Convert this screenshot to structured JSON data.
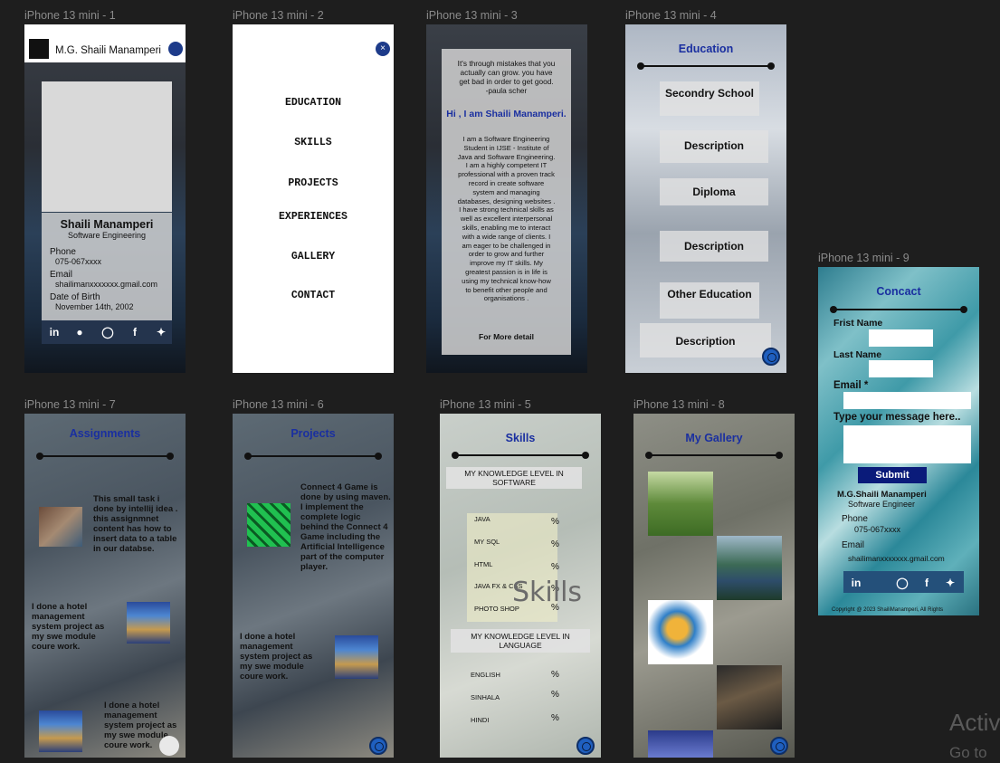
{
  "frames": [
    "iPhone 13 mini - 1",
    "iPhone 13 mini - 2",
    "iPhone 13 mini - 3",
    "iPhone 13 mini - 4",
    "iPhone 13 mini - 9",
    "iPhone 13 mini - 7",
    "iPhone 13 mini - 6",
    "iPhone 13 mini - 5",
    "iPhone 13 mini - 8"
  ],
  "home": {
    "brand": "M.G. Shaili Manamperi",
    "name": "Shaili Manamperi",
    "role": "Software Engineering",
    "phone_label": "Phone",
    "phone": "075-067xxxx",
    "email_label": "Email",
    "email": "shailimanxxxxxxx.gmail.com",
    "dob_label": "Date of Birth",
    "dob": "November 14th, 2002",
    "social": [
      "in",
      "github-icon",
      "instagram-icon",
      "f",
      "twitter-icon"
    ]
  },
  "menu": {
    "items": [
      "EDUCATION",
      "SKILLS",
      "PROJECTS",
      "EXPERIENCES",
      "GALLERY",
      "CONTACT"
    ]
  },
  "about": {
    "quote": [
      "It's through mistakes that you",
      "actually can grow. you have",
      "get bad in order to get good."
    ],
    "quote_author": "-paula scher",
    "hello": "Hi , I am Shaili Manamperi.",
    "bio": [
      "I am a Software Engineering",
      "Student in IJSE - Institute of",
      "Java and Software Engineering.",
      "I am a highly competent IT",
      "professional with a proven track",
      "record in create software",
      "system and managing",
      "databases, designing websites .",
      "I have strong technical skills as",
      "well as excellent interpersonal",
      "skills, enabling me to interact",
      "with a wide range of clients. I",
      "am eager to be challenged in",
      "order to grow and further",
      "improve my IT skills. My",
      "greatest passion is in life is",
      "using my technical know-how",
      "to benefit other people and",
      "organisations ."
    ],
    "more": "For More detail"
  },
  "education": {
    "title": "Education",
    "items": [
      "Secondry School",
      "Description",
      "Diploma",
      "Description",
      "Other Education",
      "Description"
    ]
  },
  "contact": {
    "title": "Concact",
    "first": "Frist Name",
    "last": "Last Name",
    "email": "Email *",
    "message": "Type your message here..",
    "submit": "Submit",
    "name": "M.G.Shaili Manamperi",
    "role": "Software Engineer",
    "phone_label": "Phone",
    "phone": "075-067xxxx",
    "email_label": "Email",
    "email_value": "shailimanxxxxxxx.gmail.com",
    "copyright": "Copyright @ 2023 ShailiManamperi, All Rights"
  },
  "assignments": {
    "title": "Assignments",
    "items": [
      "This small task i done by intellij idea . this assignmnet content has how to insert data to a table in our databse.",
      "I done a hotel management system project as my swe module coure work.",
      "I done a hotel management system project as my swe module coure work."
    ]
  },
  "projects": {
    "title": "Projects",
    "items": [
      "Connect 4 Game is done by using maven. I implement the complete logic behind the Connect 4 Game including the Artificial Intelligence part of the computer player.",
      "I done a hotel management system project as my swe module coure work."
    ]
  },
  "skills": {
    "title": "Skills",
    "software_heading": "MY KNOWLEDGE LEVEL IN SOFTWARE",
    "software": [
      "JAVA",
      "MY SQL",
      "HTML",
      "JAVA FX & CSS",
      "PHOTO SHOP"
    ],
    "language_heading": "MY KNOWLEDGE LEVEL IN LANGUAGE",
    "languages": [
      "ENGLISH",
      "SINHALA",
      "HINDI"
    ],
    "pct": "%",
    "watermark": "Skills"
  },
  "gallery": {
    "title": "My Gallery"
  },
  "watermark": {
    "line1": "Activ",
    "line2": "Go to"
  }
}
